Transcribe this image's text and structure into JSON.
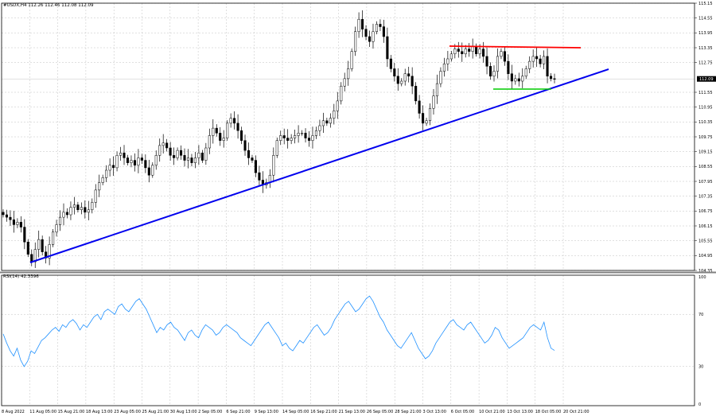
{
  "chart_data": [
    {
      "type": "candlestick",
      "symbol_header": "#USDX,H4  112.26 112.46 112.08 112.09",
      "current_price": "112.09",
      "ylim": [
        104.35,
        115.15
      ],
      "y_ticks": [
        "115.15",
        "114.55",
        "113.95",
        "113.35",
        "112.75",
        "111.55",
        "110.95",
        "110.35",
        "109.75",
        "109.15",
        "108.55",
        "107.95",
        "107.35",
        "106.75",
        "106.15",
        "105.55",
        "104.95",
        "104.35"
      ],
      "x_ticks": [
        "8 Aug 2022",
        "11 Aug 05:00",
        "15 Aug 21:00",
        "18 Aug 13:00",
        "23 Aug 05:00",
        "25 Aug 21:00",
        "30 Aug 13:00",
        "2 Sep 05:00",
        "6 Sep 21:00",
        "9 Sep 13:00",
        "14 Sep 05:00",
        "16 Sep 21:00",
        "21 Sep 13:00",
        "26 Sep 05:00",
        "28 Sep 21:00",
        "3 Oct 13:00",
        "6 Oct 05:00",
        "10 Oct 21:00",
        "13 Oct 13:00",
        "18 Oct 05:00",
        "20 Oct 21:00"
      ],
      "grid": true,
      "close_series": [
        106.6,
        106.5,
        106.4,
        106.2,
        106.3,
        106.1,
        105.5,
        105.0,
        104.7,
        105.2,
        105.6,
        105.1,
        104.85,
        105.4,
        105.9,
        106.2,
        106.5,
        106.7,
        106.6,
        106.9,
        107.0,
        106.8,
        106.9,
        106.7,
        106.8,
        107.1,
        107.6,
        107.9,
        108.1,
        108.4,
        108.6,
        108.5,
        109.0,
        109.1,
        108.9,
        108.7,
        108.8,
        108.6,
        108.9,
        108.8,
        108.5,
        108.2,
        108.6,
        109.0,
        109.4,
        109.5,
        109.3,
        109.0,
        108.9,
        109.2,
        109.0,
        108.8,
        108.9,
        108.7,
        108.9,
        109.1,
        108.8,
        109.3,
        109.8,
        110.1,
        109.9,
        109.6,
        109.7,
        110.3,
        110.5,
        110.3,
        110.0,
        109.6,
        109.2,
        108.9,
        108.8,
        108.3,
        108.0,
        107.8,
        107.9,
        108.2,
        109.0,
        109.6,
        109.8,
        109.7,
        109.6,
        109.7,
        109.8,
        109.9,
        109.9,
        109.7,
        109.6,
        109.8,
        110.0,
        110.2,
        110.4,
        110.3,
        110.5,
        110.8,
        111.2,
        111.8,
        112.1,
        112.5,
        113.2,
        114.0,
        114.5,
        114.1,
        113.8,
        113.6,
        114.0,
        114.3,
        114.2,
        113.8,
        112.9,
        112.5,
        112.2,
        111.9,
        112.0,
        112.3,
        112.2,
        111.8,
        111.2,
        110.7,
        110.3,
        110.4,
        110.9,
        111.4,
        111.9,
        112.4,
        112.7,
        112.9,
        113.1,
        113.3,
        113.2,
        113.1,
        113.3,
        113.2,
        113.4,
        113.1,
        113.3,
        113.0,
        112.6,
        112.2,
        112.4,
        113.0,
        113.2,
        112.8,
        112.3,
        112.0,
        112.1,
        112.0,
        112.2,
        112.5,
        112.8,
        113.0,
        112.9,
        112.7,
        113.0,
        112.2,
        112.1,
        112.09
      ],
      "rsi": {
        "label": "RSI(14) 42.3396",
        "ylim": [
          0,
          100
        ],
        "y_ticks": [
          "100",
          "70",
          "30",
          "0"
        ],
        "levels": [
          70,
          30
        ],
        "values": [
          55,
          48,
          42,
          38,
          44,
          35,
          30,
          34,
          42,
          40,
          45,
          50,
          52,
          55,
          58,
          60,
          57,
          62,
          60,
          64,
          66,
          63,
          58,
          62,
          60,
          64,
          68,
          70,
          66,
          72,
          74,
          72,
          70,
          76,
          78,
          74,
          72,
          76,
          80,
          82,
          78,
          74,
          68,
          62,
          56,
          60,
          58,
          62,
          64,
          60,
          58,
          54,
          50,
          56,
          58,
          54,
          52,
          58,
          62,
          60,
          58,
          54,
          56,
          60,
          62,
          60,
          58,
          56,
          52,
          50,
          48,
          46,
          50,
          54,
          58,
          62,
          64,
          60,
          56,
          52,
          46,
          48,
          44,
          42,
          46,
          50,
          48,
          52,
          56,
          60,
          62,
          58,
          54,
          56,
          60,
          66,
          70,
          74,
          78,
          80,
          76,
          72,
          74,
          78,
          82,
          84,
          80,
          74,
          68,
          64,
          58,
          54,
          50,
          46,
          44,
          48,
          52,
          56,
          50,
          44,
          40,
          36,
          38,
          42,
          48,
          52,
          56,
          60,
          64,
          66,
          62,
          60,
          58,
          62,
          64,
          60,
          56,
          52,
          48,
          50,
          54,
          60,
          58,
          52,
          48,
          44,
          46,
          48,
          50,
          52,
          56,
          60,
          62,
          60,
          58,
          64,
          52,
          44,
          42.34
        ]
      },
      "annotations": [
        {
          "kind": "trendline",
          "color": "#0000ee"
        },
        {
          "kind": "resistance",
          "color": "#ff0000"
        },
        {
          "kind": "support",
          "color": "#00cc00"
        }
      ],
      "colors": {
        "candle": "#000000",
        "rsi_line": "#1e90ff",
        "grid": "#c0c0c0"
      }
    }
  ]
}
